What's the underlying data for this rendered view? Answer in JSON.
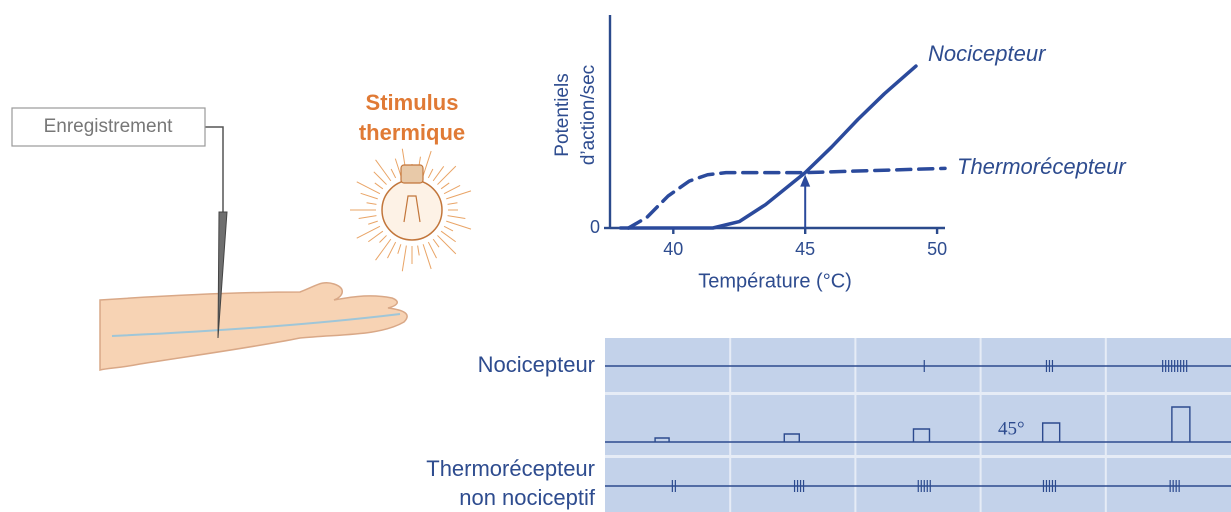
{
  "recording": {
    "label": "Enregistrement"
  },
  "stimulus": {
    "label_line1": "Stimulus",
    "label_line2": "thermique"
  },
  "chart_data": {
    "type": "line",
    "ylabel_line1": "Potentiels",
    "ylabel_line2": "d’action/sec",
    "xlabel": "Température (°C)",
    "xlim": [
      37.6,
      50.3
    ],
    "ylim": [
      0,
      100
    ],
    "xticks": [
      40,
      45,
      50
    ],
    "yticks": [
      0
    ],
    "marker_x": 45,
    "series": [
      {
        "name": "Nocicepteur",
        "color": "#2b4a9c",
        "dashed": false,
        "x": [
          38.0,
          40,
          41.5,
          42.5,
          43.5,
          44.5,
          45,
          46,
          47,
          48,
          49.2
        ],
        "values": [
          0,
          0,
          0,
          3,
          11,
          21,
          26,
          38,
          51,
          63,
          76
        ]
      },
      {
        "name": "Thermorécepteur",
        "color": "#2b4a9c",
        "dashed": true,
        "x": [
          38.3,
          39,
          39.8,
          40.6,
          41.3,
          42,
          45,
          50.3
        ],
        "values": [
          0,
          5,
          15,
          22,
          25,
          26,
          26,
          28
        ]
      }
    ]
  },
  "traces": {
    "row1_label": "Nocicepteur",
    "row3_label_line1": "Thermorécepteur",
    "row3_label_line2": "non nociceptif",
    "temperature_label": "45°",
    "nociceptor_spikes": [
      0,
      0,
      1,
      3,
      9
    ],
    "thermoreceptor_spikes": [
      2,
      4,
      5,
      5,
      4
    ],
    "pulse_heights": [
      4,
      8,
      13,
      19,
      35
    ]
  }
}
